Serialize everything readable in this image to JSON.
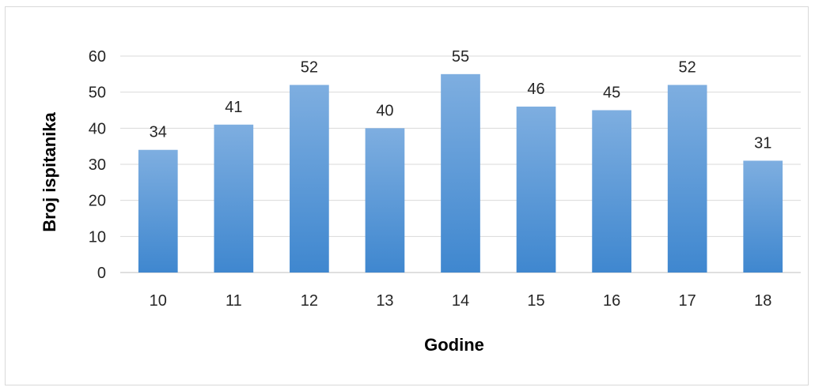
{
  "chart_data": {
    "type": "bar",
    "categories": [
      "10",
      "11",
      "12",
      "13",
      "14",
      "15",
      "16",
      "17",
      "18"
    ],
    "values": [
      34,
      41,
      52,
      40,
      55,
      46,
      45,
      52,
      31
    ],
    "xlabel": "Godine",
    "ylabel": "Broj ispitanika",
    "ylim": [
      0,
      60
    ],
    "yticks": [
      "0",
      "10",
      "20",
      "30",
      "40",
      "50",
      "60"
    ],
    "grid": true,
    "data_labels": true,
    "colors": {
      "bar_top": "#7eaee0",
      "bar_bottom": "#3f87cf",
      "grid": "#d9d9d9",
      "text": "#262626"
    }
  }
}
